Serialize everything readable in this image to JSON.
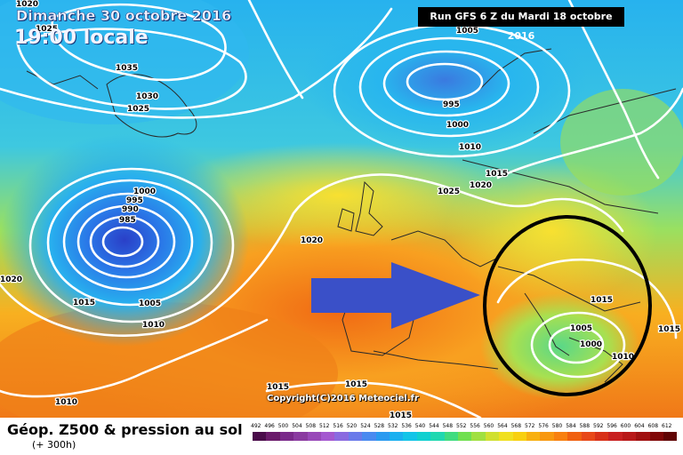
{
  "header": {
    "date": "Dimanche 30 octobre 2016",
    "time": "19:00 locale",
    "run": "Run GFS 6 Z du Mardi 18 octobre 2016"
  },
  "map": {
    "copyright": "Copyright(C)2016 Meteociel.fr",
    "pressure_labels": [
      "1020",
      "1025",
      "1035",
      "1030",
      "1025",
      "1005",
      "995",
      "1000",
      "1010",
      "1015",
      "1020",
      "1025",
      "1000",
      "995",
      "990",
      "985",
      "1020",
      "1015",
      "1005",
      "1010",
      "1020",
      "1015",
      "1005",
      "1000",
      "1010",
      "1015",
      "1015",
      "1015",
      "1015",
      "1010"
    ],
    "annotation": {
      "shape": "circle",
      "color": "#000000",
      "arrow_color": "#3a50c8"
    }
  },
  "legend": {
    "title": "Géop. Z500 & pression au sol",
    "subtitle": "(+ 300h)",
    "scale_ticks": [
      "492",
      "496",
      "500",
      "504",
      "508",
      "512",
      "516",
      "520",
      "524",
      "528",
      "532",
      "536",
      "540",
      "544",
      "548",
      "552",
      "556",
      "560",
      "564",
      "568",
      "572",
      "576",
      "580",
      "584",
      "588",
      "592",
      "596",
      "600",
      "604",
      "608",
      "612"
    ],
    "scale_colors": [
      "#4a0c4a",
      "#6a1a6a",
      "#7a2a8a",
      "#8a3aa0",
      "#9848b8",
      "#a458d0",
      "#8a6ae0",
      "#6a7aea",
      "#4a8af0",
      "#2a9af0",
      "#1ab0f0",
      "#12c4e8",
      "#10d0d0",
      "#20d8b0",
      "#40dc80",
      "#70e050",
      "#a0e040",
      "#d0e030",
      "#f0e020",
      "#f8d010",
      "#f8b010",
      "#f89810",
      "#f88010",
      "#f06010",
      "#e84818",
      "#d83018",
      "#c82020",
      "#b81818",
      "#a01010",
      "#800808",
      "#600404"
    ]
  }
}
